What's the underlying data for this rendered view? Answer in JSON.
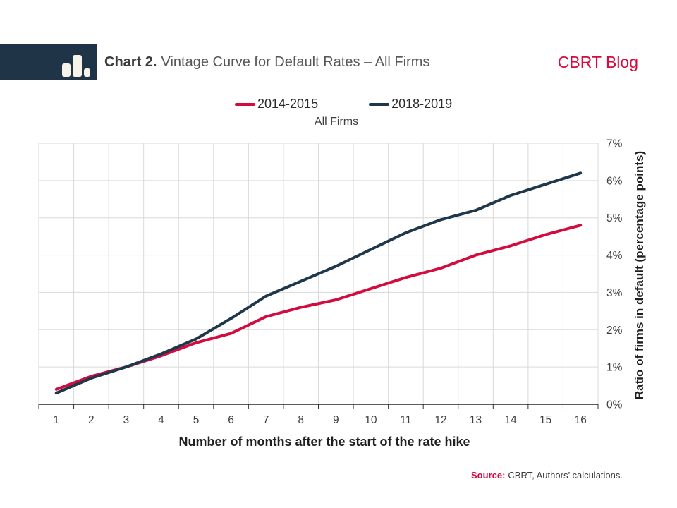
{
  "header": {
    "title_prefix": "Chart 2.",
    "title_rest": "Vintage Curve for Default Rates – All Firms",
    "brand": "CBRT Blog"
  },
  "colors": {
    "accent_red": "#d30b3e",
    "navy": "#1f374a",
    "grid": "#d9d9d9",
    "axis": "#333333",
    "tick_label": "#404040",
    "logo_bg": "#203448",
    "logo_bar": "#f8f3e8"
  },
  "chart_data": {
    "type": "line",
    "title": "All Firms",
    "xlabel": "Number of months after the start of the rate hike",
    "ylabel": "Ratio of firms in default (percentage points)",
    "x": [
      1,
      2,
      3,
      4,
      5,
      6,
      7,
      8,
      9,
      10,
      11,
      12,
      13,
      14,
      15,
      16
    ],
    "series": [
      {
        "name": "2014-2015",
        "color": "#d30b3e",
        "values": [
          0.4,
          0.75,
          1.0,
          1.3,
          1.65,
          1.9,
          2.35,
          2.6,
          2.8,
          3.1,
          3.4,
          3.65,
          4.0,
          4.25,
          4.55,
          4.8
        ]
      },
      {
        "name": "2018-2019",
        "color": "#1f374a",
        "values": [
          0.3,
          0.7,
          1.0,
          1.35,
          1.75,
          2.3,
          2.9,
          3.3,
          3.7,
          4.15,
          4.6,
          4.95,
          5.2,
          5.6,
          5.9,
          6.2
        ]
      }
    ],
    "ylim": [
      0,
      7
    ],
    "ytick_step": 1,
    "ytick_suffix": "%",
    "grid": true,
    "legend_position": "top"
  },
  "footer": {
    "source_label": "Source:",
    "source_text": "CBRT, Authors’ calculations."
  }
}
